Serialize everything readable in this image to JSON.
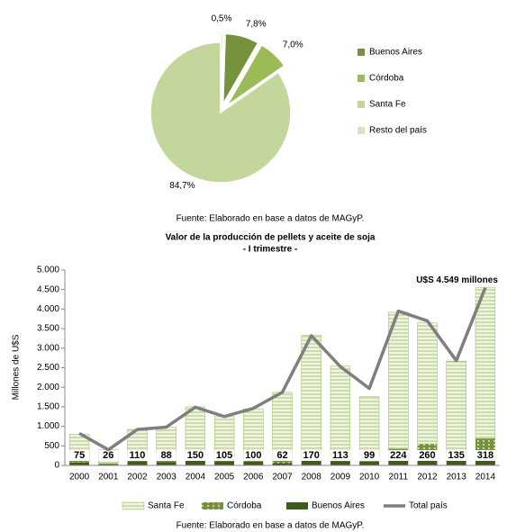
{
  "chart_data": [
    {
      "type": "pie",
      "series": [
        {
          "name": "Buenos Aires",
          "color": "#76923c",
          "value": 7.8,
          "value_label": "7,8%"
        },
        {
          "name": "Córdoba",
          "color": "#9bbb59",
          "value": 7.0,
          "value_label": "7,0%"
        },
        {
          "name": "Santa Fe",
          "color": "#c3d69b",
          "value": 84.7,
          "value_label": "84,7%"
        },
        {
          "name": "Resto del país",
          "color": "#d7e4bd",
          "value": 0.5,
          "value_label": "0,5%"
        }
      ],
      "source": "Fuente: Elaborado en base a datos de MAGyP."
    },
    {
      "type": "stacked-bar-line",
      "title": "Valor de la producción de pellets y aceite de soja",
      "subtitle": "- I trimestre -",
      "ylabel": "Millones de U$S",
      "categories": [
        "2000",
        "2001",
        "2002",
        "2003",
        "2004",
        "2005",
        "2006",
        "2007",
        "2008",
        "2009",
        "2010",
        "2011",
        "2012",
        "2013",
        "2014"
      ],
      "series": [
        {
          "name": "Santa Fe",
          "color": "#9bbb59",
          "pattern": "lines",
          "values": [
            665,
            354,
            730,
            812,
            1230,
            1055,
            1270,
            1748,
            3010,
            2307,
            1571,
            3496,
            3100,
            2385,
            3861
          ]
        },
        {
          "name": "Córdoba",
          "color": "#76923c",
          "pattern": "dots",
          "values": [
            60,
            20,
            80,
            80,
            120,
            90,
            80,
            60,
            150,
            120,
            90,
            200,
            290,
            150,
            370
          ]
        },
        {
          "name": "Buenos Aires",
          "color": "#3f5a1e",
          "pattern": "solid",
          "values": [
            75,
            26,
            110,
            88,
            150,
            105,
            100,
            62,
            170,
            113,
            99,
            224,
            260,
            135,
            318
          ]
        },
        {
          "name": "Total país",
          "color": "#7f7f7f",
          "type": "line",
          "values": [
            820,
            400,
            920,
            980,
            1490,
            1250,
            1460,
            1870,
            3320,
            2530,
            1970,
            3950,
            3700,
            2680,
            4549
          ]
        }
      ],
      "ylim": [
        0,
        5000
      ],
      "yticks": [
        0,
        500,
        {
          "value": 1000,
          "label": "1.000"
        },
        {
          "value": 1500,
          "label": "1.500"
        },
        {
          "value": 2000,
          "label": "2.000"
        },
        {
          "value": 2500,
          "label": "2.500"
        },
        {
          "value": 3000,
          "label": "3.000"
        },
        {
          "value": 3500,
          "label": "3.500"
        },
        {
          "value": 4000,
          "label": "4.000"
        },
        {
          "value": 4500,
          "label": "4.500"
        },
        {
          "value": 5000,
          "label": "5.000"
        }
      ],
      "annotation": "U$S 4.549 millones",
      "source": "Fuente: Elaborado en base a datos de MAGyP."
    }
  ]
}
